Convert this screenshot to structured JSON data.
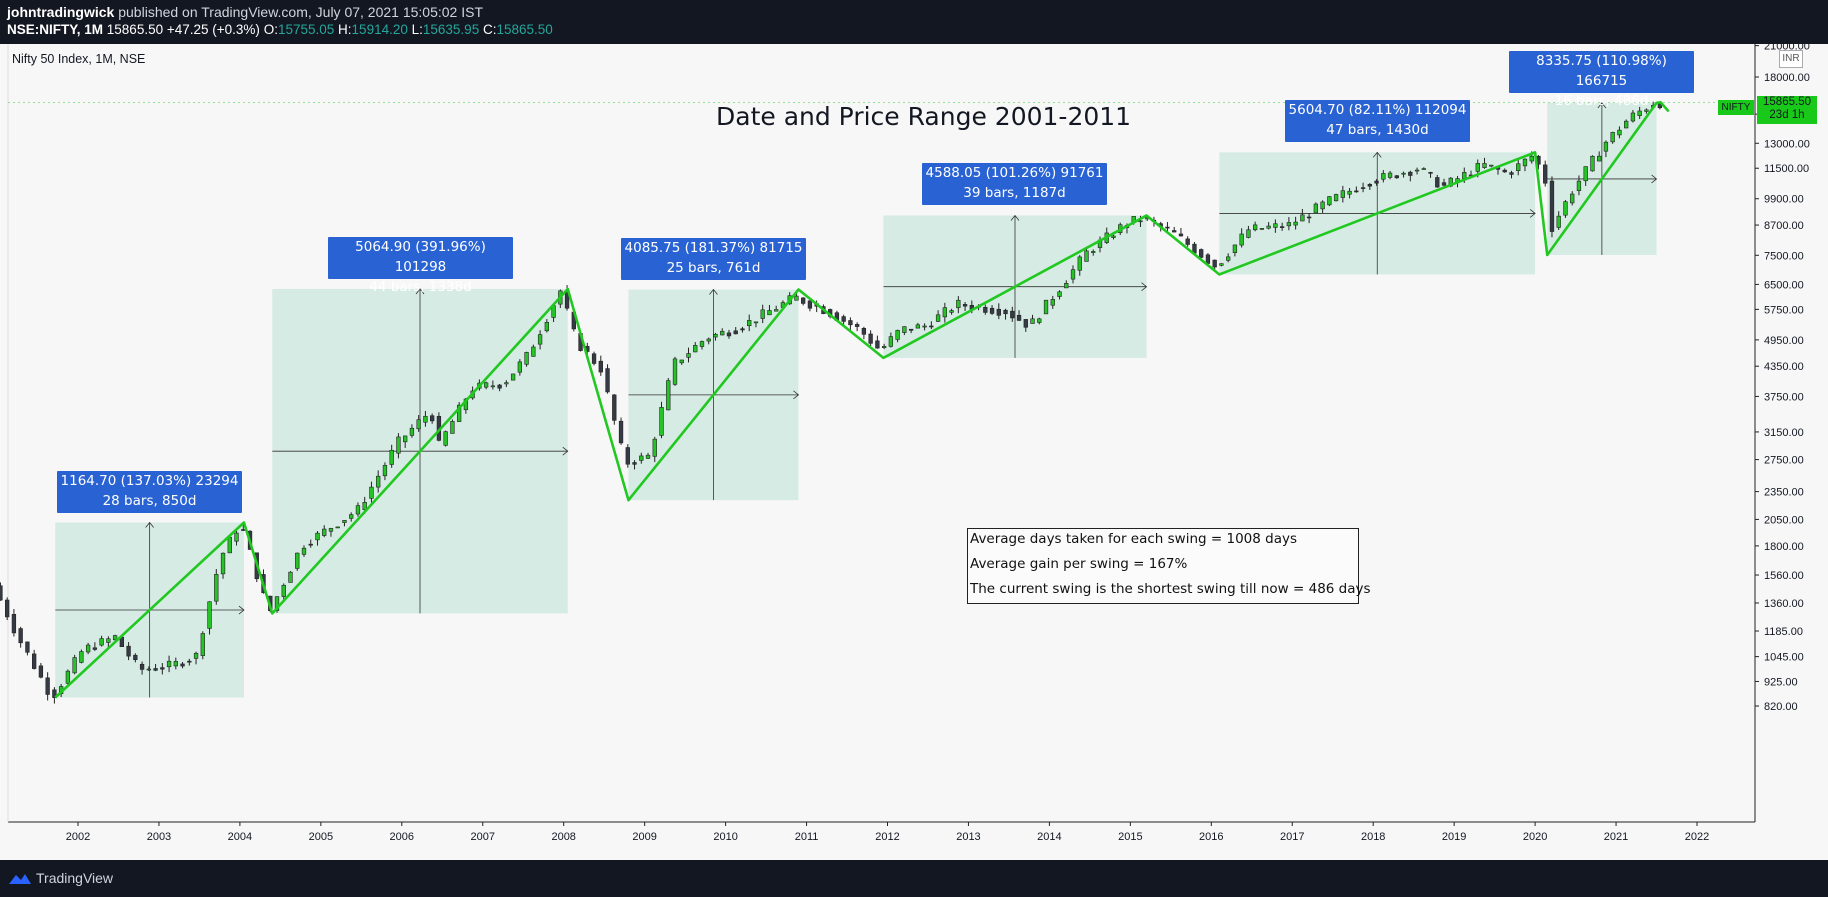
{
  "header": {
    "author": "johntradingwick",
    "published": "published on TradingView.com, July 07, 2021 15:05:02 IST",
    "symbol": "NSE:NIFTY, 1M",
    "last": "15865.50",
    "change": "+47.25 (+0.3%)",
    "o_label": "O:",
    "o": "15755.05",
    "h_label": "H:",
    "h": "15914.20",
    "l_label": "L:",
    "l": "15635.95",
    "c_label": "C:",
    "c": "15865.50"
  },
  "chart_legend": "Nifty 50 Index, 1M, NSE",
  "currency_badge": "INR",
  "price_tag": {
    "symbol": "NIFTY",
    "price": "15865.50",
    "countdown": "23d 1h"
  },
  "footer": {
    "brand": "TradingView"
  },
  "notes": [
    "Average days taken for each swing = 1008 days",
    "Average gain per swing = 167%",
    "The current swing is the shortest swing till now = 486 days"
  ],
  "colors": {
    "up": "#27c227",
    "down": "#363a45",
    "zigzag": "#20c820",
    "range_fill": "#d6ebe4",
    "stat_box": "#2962d3"
  },
  "chart_data": {
    "type": "candlestick",
    "title": "Date and Price Range 2001-2011",
    "x_axis": {
      "ticks": [
        "2002",
        "2003",
        "2004",
        "2005",
        "2006",
        "2007",
        "2008",
        "2009",
        "2010",
        "2011",
        "2012",
        "2013",
        "2014",
        "2015",
        "2016",
        "2017",
        "2018",
        "2019",
        "2020",
        "2021",
        "2022"
      ],
      "range": [
        2000.9,
        2022.7
      ]
    },
    "y_axis": {
      "scale": "log",
      "ticks": [
        "820.00",
        "925.00",
        "1045.00",
        "1185.00",
        "1360.00",
        "1560.00",
        "1800.00",
        "2050.00",
        "2350.00",
        "2750.00",
        "3150.00",
        "3750.00",
        "4350.00",
        "4950.00",
        "5750.00",
        "6500.00",
        "7500.00",
        "8700.00",
        "9900.00",
        "11500.00",
        "13000.00",
        "15000.00",
        "18000.00",
        "21000.00"
      ],
      "range": [
        800,
        22000
      ]
    },
    "swings": [
      {
        "start": [
          2001.72,
          855
        ],
        "end": [
          2004.05,
          2019
        ],
        "label1": "1164.70 (137.03%) 23294",
        "label2": "28 bars, 850d"
      },
      {
        "start": [
          2004.4,
          1292
        ],
        "end": [
          2008.05,
          6357
        ],
        "label1": "5064.90 (391.96%) 101298",
        "label2": "44 bars, 1338d"
      },
      {
        "start": [
          2008.8,
          2253
        ],
        "end": [
          2010.9,
          6339
        ],
        "label1": "4085.75 (181.37%) 81715",
        "label2": "25 bars, 761d"
      },
      {
        "start": [
          2011.95,
          4531
        ],
        "end": [
          2015.2,
          9119
        ],
        "label1": "4588.05 (101.26%) 91761",
        "label2": "39 bars, 1187d"
      },
      {
        "start": [
          2016.1,
          6826
        ],
        "end": [
          2020.0,
          12431
        ],
        "label1": "5604.70 (82.11%) 112094",
        "label2": "47 bars, 1430d"
      },
      {
        "start": [
          2020.15,
          7511
        ],
        "end": [
          2021.5,
          15847
        ],
        "label1": "8335.75 (110.98%) 166715",
        "label2": "16 bars, 486d"
      }
    ],
    "zigzag": [
      [
        2001.72,
        855
      ],
      [
        2004.05,
        2019
      ],
      [
        2004.4,
        1292
      ],
      [
        2008.05,
        6357
      ],
      [
        2008.8,
        2253
      ],
      [
        2010.9,
        6339
      ],
      [
        2011.95,
        4531
      ],
      [
        2015.2,
        9119
      ],
      [
        2016.1,
        6826
      ],
      [
        2020.0,
        12431
      ],
      [
        2020.15,
        7511
      ],
      [
        2021.5,
        15847
      ],
      [
        2021.55,
        15900
      ],
      [
        2021.65,
        15200
      ]
    ],
    "anchors": [
      [
        2001.0,
        1480
      ],
      [
        2001.3,
        1150
      ],
      [
        2001.72,
        855
      ],
      [
        2002.1,
        1080
      ],
      [
        2002.5,
        1150
      ],
      [
        2002.8,
        980
      ],
      [
        2003.2,
        1000
      ],
      [
        2003.5,
        1050
      ],
      [
        2003.8,
        1700
      ],
      [
        2004.05,
        2019
      ],
      [
        2004.4,
        1292
      ],
      [
        2004.8,
        1800
      ],
      [
        2005.5,
        2150
      ],
      [
        2006.0,
        3000
      ],
      [
        2006.4,
        3500
      ],
      [
        2006.5,
        2950
      ],
      [
        2006.9,
        3900
      ],
      [
        2007.3,
        4000
      ],
      [
        2007.6,
        4600
      ],
      [
        2008.0,
        6300
      ],
      [
        2008.2,
        4900
      ],
      [
        2008.5,
        4300
      ],
      [
        2008.8,
        2700
      ],
      [
        2009.1,
        2800
      ],
      [
        2009.4,
        4400
      ],
      [
        2009.8,
        5000
      ],
      [
        2010.2,
        5250
      ],
      [
        2010.9,
        6100
      ],
      [
        2011.3,
        5700
      ],
      [
        2011.7,
        5200
      ],
      [
        2011.95,
        4700
      ],
      [
        2012.2,
        5200
      ],
      [
        2012.5,
        5300
      ],
      [
        2012.9,
        5900
      ],
      [
        2013.5,
        5700
      ],
      [
        2013.8,
        5300
      ],
      [
        2014.2,
        6500
      ],
      [
        2014.5,
        7600
      ],
      [
        2015.0,
        8800
      ],
      [
        2015.2,
        9000
      ],
      [
        2015.6,
        8300
      ],
      [
        2016.1,
        7100
      ],
      [
        2016.5,
        8500
      ],
      [
        2017.0,
        8700
      ],
      [
        2017.5,
        9800
      ],
      [
        2018.0,
        10800
      ],
      [
        2018.6,
        11500
      ],
      [
        2018.9,
        10500
      ],
      [
        2019.4,
        11700
      ],
      [
        2019.7,
        11200
      ],
      [
        2020.0,
        12200
      ],
      [
        2020.15,
        11300
      ],
      [
        2020.25,
        8600
      ],
      [
        2020.5,
        10300
      ],
      [
        2020.9,
        13000
      ],
      [
        2021.2,
        14700
      ],
      [
        2021.5,
        15850
      ]
    ]
  }
}
